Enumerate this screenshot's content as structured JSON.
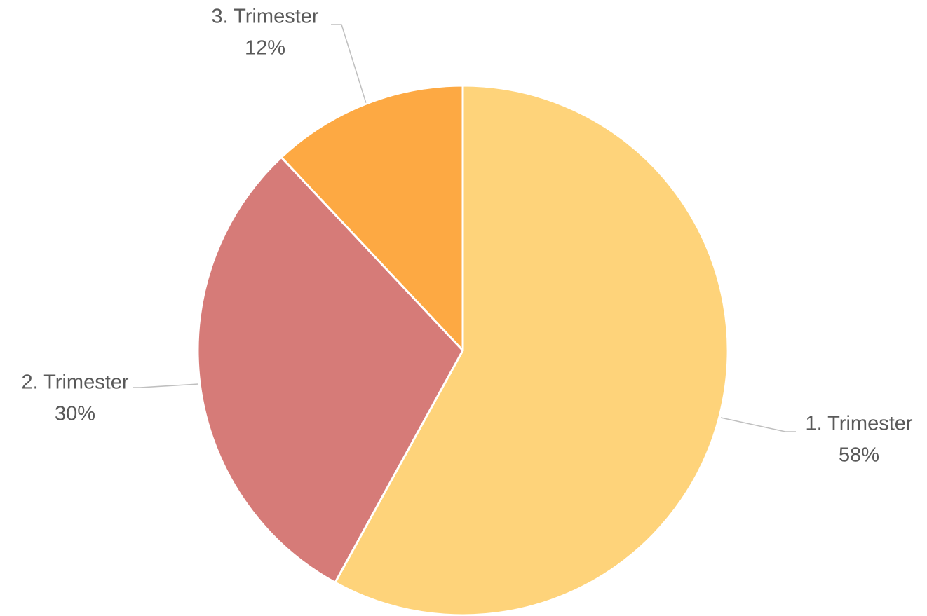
{
  "chart_data": {
    "type": "pie",
    "categories": [
      "1. Trimester",
      "2. Trimester",
      "3. Trimester"
    ],
    "values": [
      58,
      30,
      12
    ],
    "value_labels": [
      "58%",
      "30%",
      "12%"
    ],
    "colors": [
      "#FED37A",
      "#D67B78",
      "#FDA943"
    ]
  }
}
